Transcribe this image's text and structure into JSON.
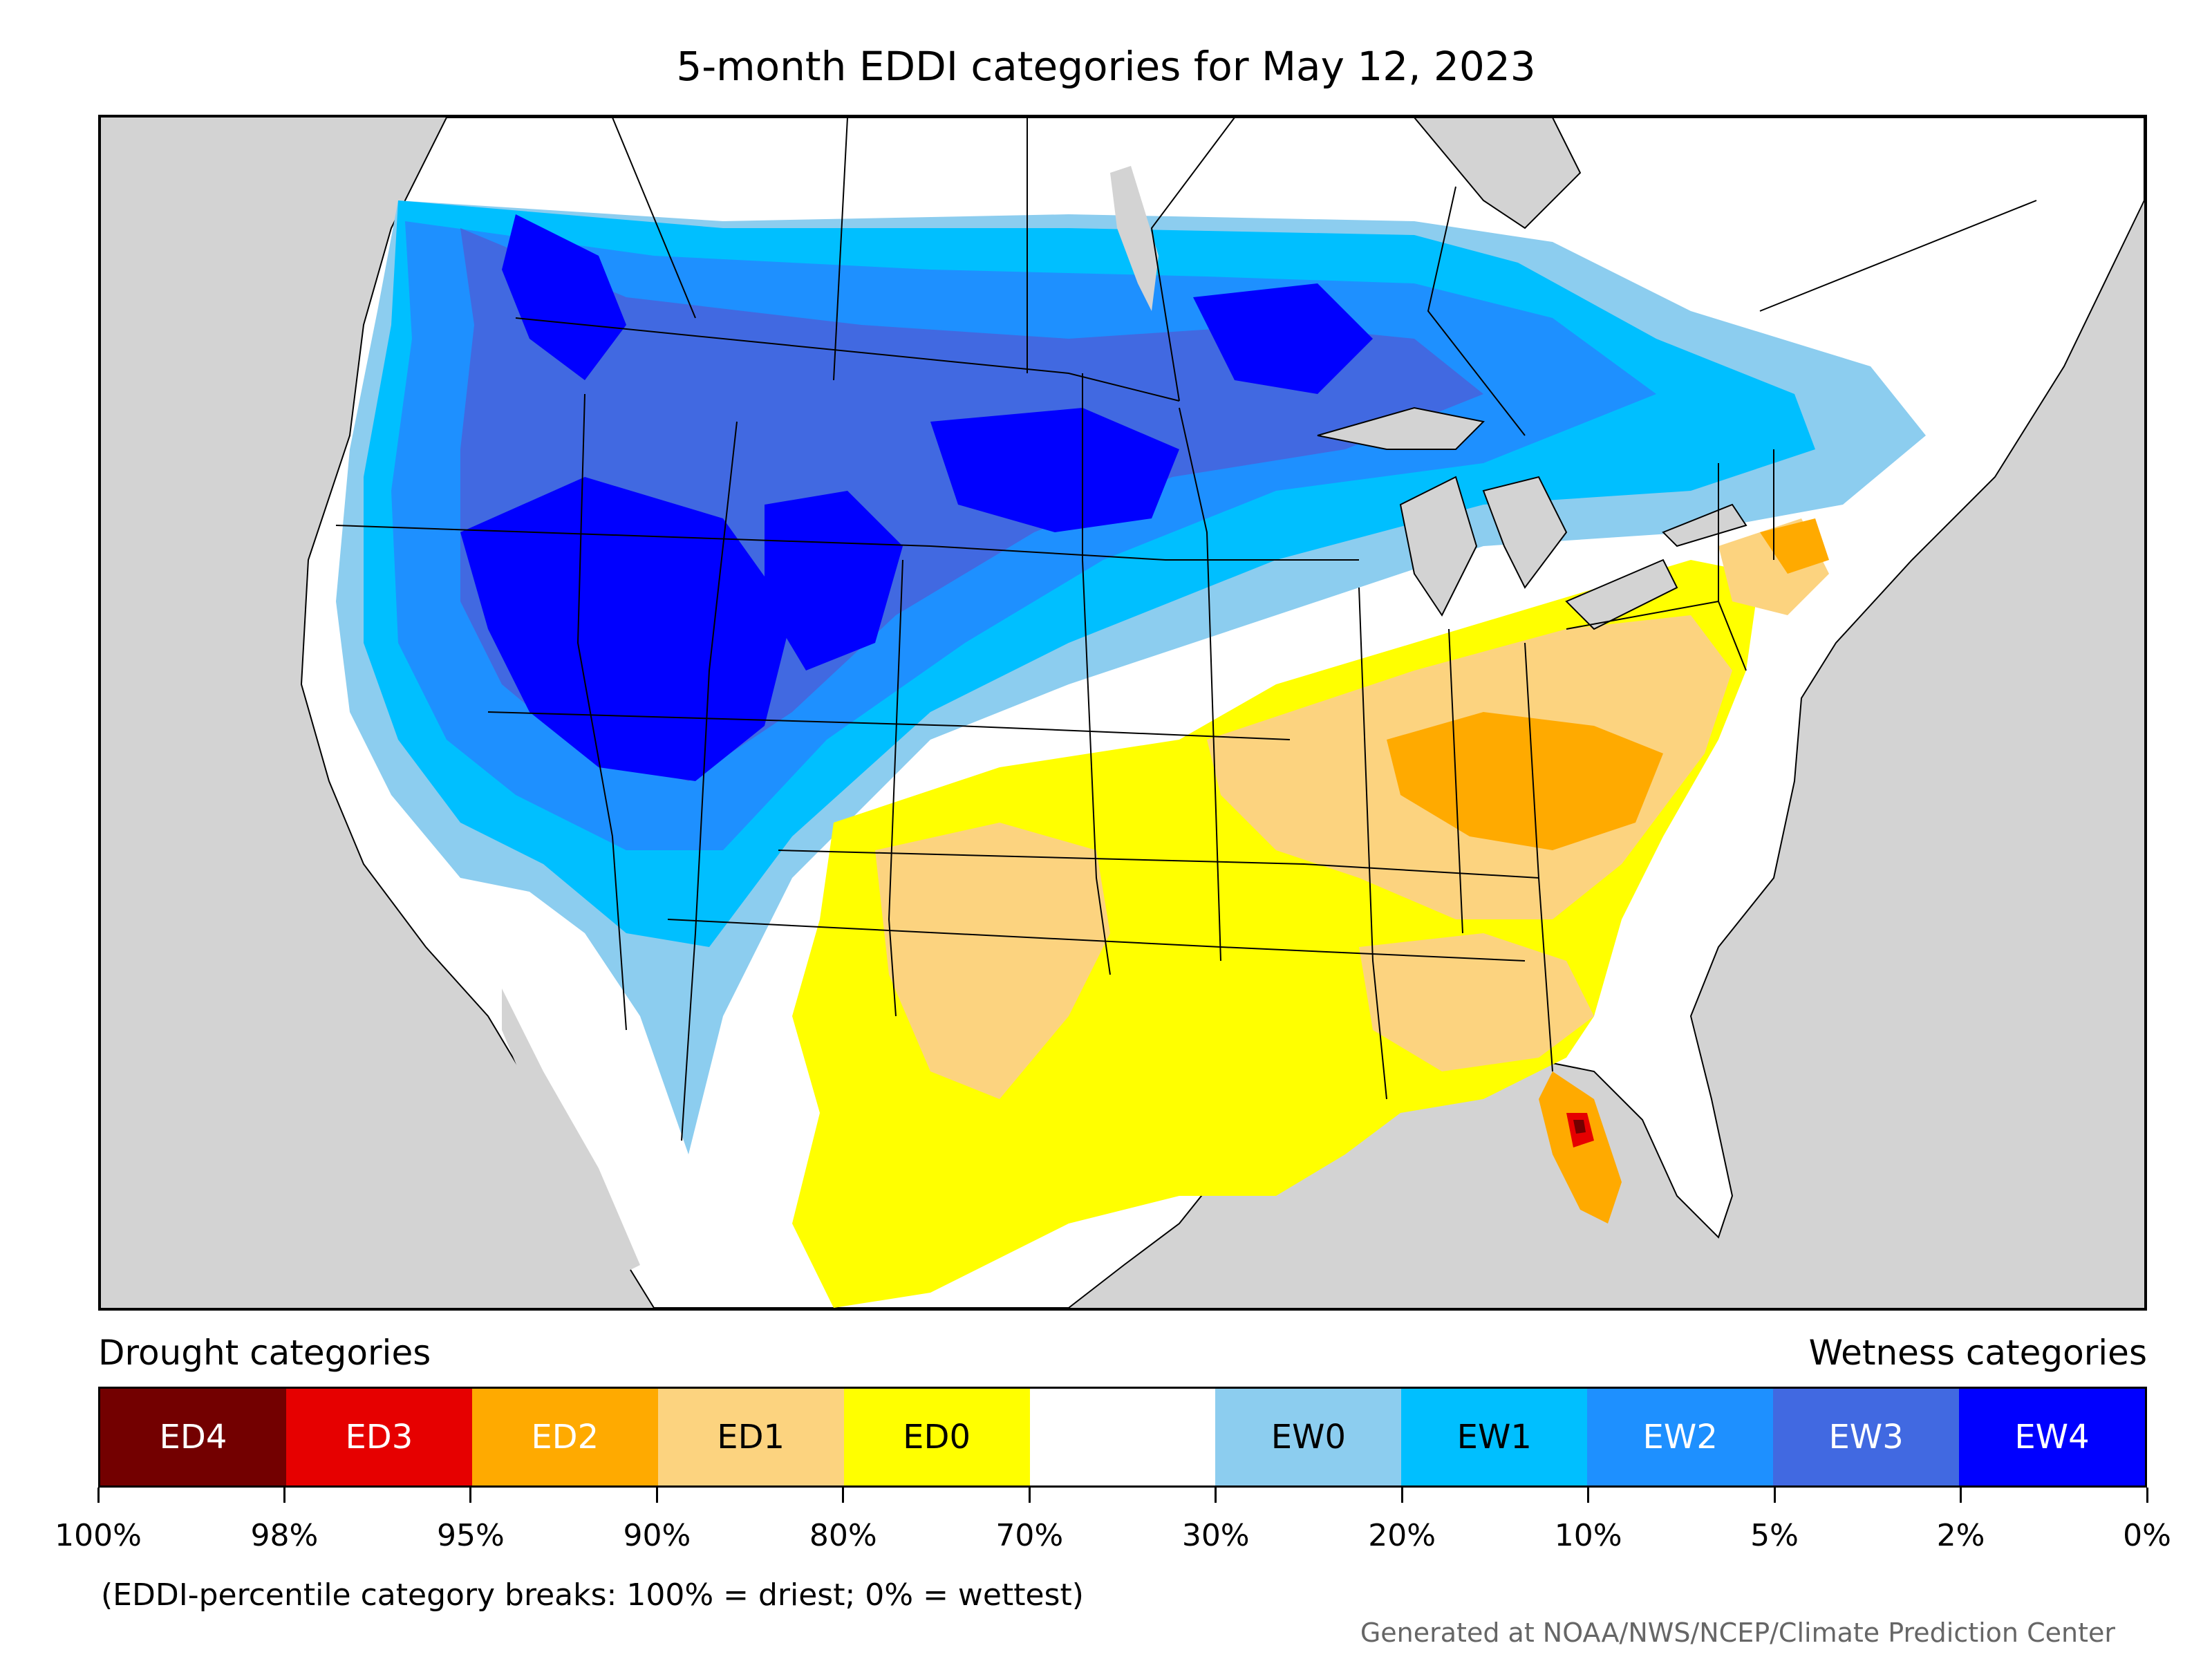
{
  "title": "5-month EDDI categories for May 12, 2023",
  "legend": {
    "drought_heading": "Drought categories",
    "wetness_heading": "Wetness categories",
    "categories": [
      {
        "label": "ED4",
        "color": "#730000",
        "text_color": "#ffffff"
      },
      {
        "label": "ED3",
        "color": "#e60000",
        "text_color": "#ffffff"
      },
      {
        "label": "ED2",
        "color": "#ffaa00",
        "text_color": "#ffffff"
      },
      {
        "label": "ED1",
        "color": "#fcd37f",
        "text_color": "#000000"
      },
      {
        "label": "ED0",
        "color": "#ffff00",
        "text_color": "#000000"
      },
      {
        "label": "",
        "color": "#ffffff",
        "text_color": "#000000"
      },
      {
        "label": "EW0",
        "color": "#8ccdef",
        "text_color": "#000000"
      },
      {
        "label": "EW1",
        "color": "#00bfff",
        "text_color": "#000000"
      },
      {
        "label": "EW2",
        "color": "#1e90ff",
        "text_color": "#ffffff"
      },
      {
        "label": "EW3",
        "color": "#4169e1",
        "text_color": "#ffffff"
      },
      {
        "label": "EW4",
        "color": "#0000ff",
        "text_color": "#ffffff"
      }
    ],
    "breaks": [
      "100%",
      "98%",
      "95%",
      "90%",
      "80%",
      "70%",
      "30%",
      "20%",
      "10%",
      "5%",
      "2%",
      "0%"
    ]
  },
  "note": "(EDDI-percentile category breaks: 100% = driest; 0% = wettest)",
  "credit": "Generated at NOAA/NWS/NCEP/Climate Prediction Center",
  "map": {
    "ocean_color": "#d3d3d3",
    "land_color": "#ffffff",
    "border_color": "#000000"
  }
}
